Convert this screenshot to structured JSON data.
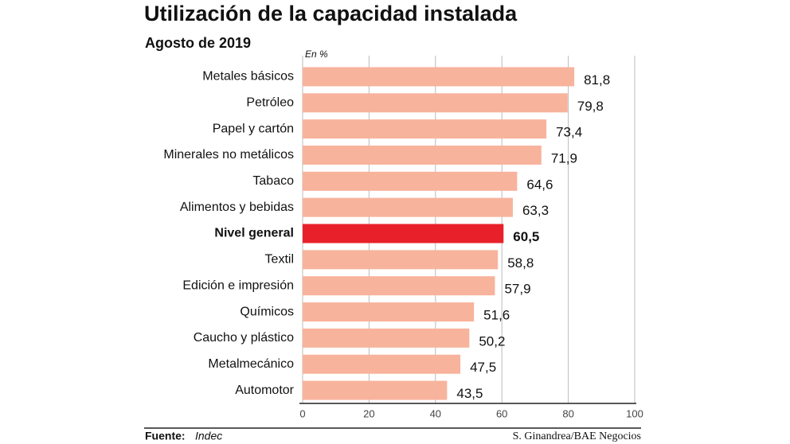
{
  "chart_data": {
    "type": "hbar",
    "title": "Utilización de la capacidad instalada",
    "subtitle": "Agosto de 2019",
    "unit_label": "En %",
    "categories": [
      "Metales básicos",
      "Petróleo",
      "Papel y cartón",
      "Minerales no metálicos",
      "Tabaco",
      "Alimentos y bebidas",
      "Nivel general",
      "Textil",
      "Edición e impresión",
      "Químicos",
      "Caucho y plástico",
      "Metalmecánico",
      "Automotor"
    ],
    "values": [
      81.8,
      79.8,
      73.4,
      71.9,
      64.6,
      63.3,
      60.5,
      58.8,
      57.9,
      51.6,
      50.2,
      47.5,
      43.5
    ],
    "value_labels": [
      "81,8",
      "79,8",
      "73,4",
      "71,9",
      "64,6",
      "63,3",
      "60,5",
      "58,8",
      "57,9",
      "51,6",
      "50,2",
      "47,5",
      "43,5"
    ],
    "color": "#f8b39c",
    "colors": [
      "#f8b39c",
      "#f8b39c",
      "#f8b39c",
      "#f8b39c",
      "#f8b39c",
      "#f8b39c",
      "#e8202a",
      "#f8b39c",
      "#f8b39c",
      "#f8b39c",
      "#f8b39c",
      "#f8b39c",
      "#f8b39c"
    ],
    "xlim": [
      0,
      100
    ],
    "xticks": [
      0,
      20,
      40,
      60,
      80,
      100
    ],
    "grid": true,
    "source_label": "Fuente:",
    "source": "Indec",
    "credit": "S. Ginandrea/BAE Negocios"
  }
}
